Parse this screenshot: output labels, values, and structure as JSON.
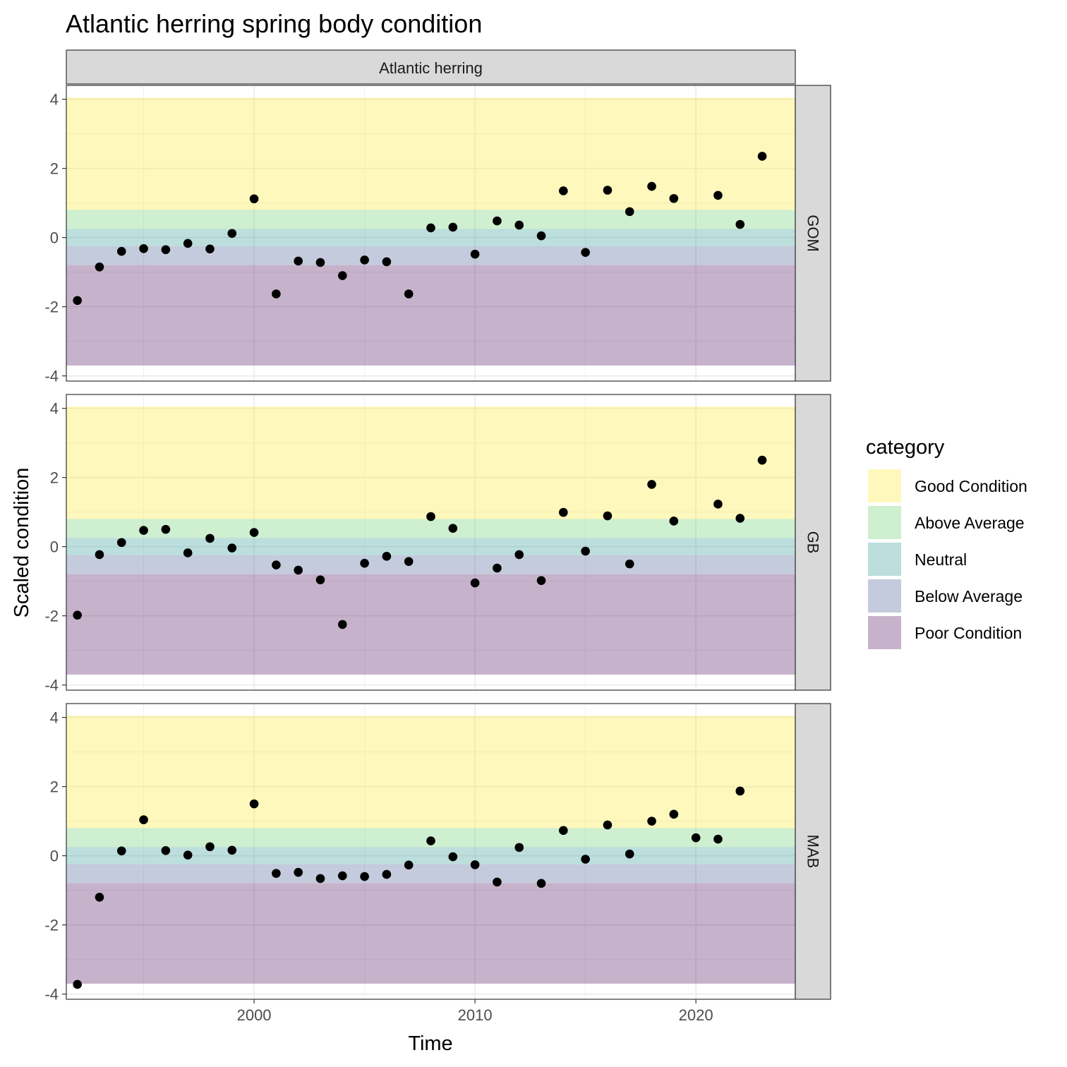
{
  "chart_data": {
    "type": "scatter",
    "title": "Atlantic herring spring body condition",
    "xlabel": "Time",
    "ylabel": "Scaled condition",
    "column_strip": "Atlantic herring",
    "xlim": [
      1991.5,
      2024.5
    ],
    "ylim": [
      -4.15,
      4.4
    ],
    "x_ticks": [
      2000,
      2010,
      2020
    ],
    "y_ticks": [
      -4,
      -2,
      0,
      2,
      4
    ],
    "grid": true,
    "legend": {
      "title": "category",
      "position": "right",
      "entries": [
        {
          "label": "Good Condition",
          "color": "#fde725"
        },
        {
          "label": "Above Average",
          "color": "#5ec962"
        },
        {
          "label": "Neutral",
          "color": "#21918c"
        },
        {
          "label": "Below Average",
          "color": "#3b528b"
        },
        {
          "label": "Poor Condition",
          "color": "#440154"
        }
      ]
    },
    "category_bands": [
      {
        "label": "Good Condition",
        "ymin": 0.8,
        "ymax": 4.05
      },
      {
        "label": "Above Average",
        "ymin": 0.25,
        "ymax": 0.8
      },
      {
        "label": "Neutral",
        "ymin": -0.25,
        "ymax": 0.25
      },
      {
        "label": "Below Average",
        "ymin": -0.8,
        "ymax": -0.25
      },
      {
        "label": "Poor Condition",
        "ymin": -3.7,
        "ymax": -0.8
      }
    ],
    "panels": [
      {
        "name": "GOM",
        "points": [
          [
            1992,
            -1.82
          ],
          [
            1993,
            -0.85
          ],
          [
            1994,
            -0.4
          ],
          [
            1995,
            -0.32
          ],
          [
            1996,
            -0.35
          ],
          [
            1997,
            -0.17
          ],
          [
            1998,
            -0.33
          ],
          [
            1999,
            0.12
          ],
          [
            2000,
            1.12
          ],
          [
            2001,
            -1.63
          ],
          [
            2002,
            -0.68
          ],
          [
            2003,
            -0.72
          ],
          [
            2004,
            -1.1
          ],
          [
            2005,
            -0.65
          ],
          [
            2006,
            -0.7
          ],
          [
            2007,
            -1.63
          ],
          [
            2008,
            0.28
          ],
          [
            2009,
            0.3
          ],
          [
            2010,
            -0.48
          ],
          [
            2011,
            0.48
          ],
          [
            2012,
            0.36
          ],
          [
            2013,
            0.05
          ],
          [
            2014,
            1.35
          ],
          [
            2015,
            -0.43
          ],
          [
            2016,
            1.37
          ],
          [
            2017,
            0.75
          ],
          [
            2018,
            1.48
          ],
          [
            2019,
            1.13
          ],
          [
            2021,
            1.22
          ],
          [
            2022,
            0.38
          ],
          [
            2023,
            2.35
          ]
        ]
      },
      {
        "name": "GB",
        "points": [
          [
            1992,
            -1.98
          ],
          [
            1993,
            -0.23
          ],
          [
            1994,
            0.12
          ],
          [
            1995,
            0.47
          ],
          [
            1996,
            0.5
          ],
          [
            1997,
            -0.18
          ],
          [
            1998,
            0.24
          ],
          [
            1999,
            -0.04
          ],
          [
            2000,
            0.41
          ],
          [
            2001,
            -0.53
          ],
          [
            2002,
            -0.68
          ],
          [
            2003,
            -0.96
          ],
          [
            2004,
            -2.25
          ],
          [
            2005,
            -0.48
          ],
          [
            2006,
            -0.28
          ],
          [
            2007,
            -0.43
          ],
          [
            2008,
            0.87
          ],
          [
            2009,
            0.53
          ],
          [
            2010,
            -1.05
          ],
          [
            2011,
            -0.62
          ],
          [
            2012,
            -0.23
          ],
          [
            2013,
            -0.98
          ],
          [
            2014,
            0.99
          ],
          [
            2015,
            -0.13
          ],
          [
            2016,
            0.89
          ],
          [
            2017,
            -0.5
          ],
          [
            2018,
            1.8
          ],
          [
            2019,
            0.74
          ],
          [
            2021,
            1.23
          ],
          [
            2022,
            0.82
          ],
          [
            2023,
            2.5
          ]
        ]
      },
      {
        "name": "MAB",
        "points": [
          [
            1992,
            -3.72
          ],
          [
            1993,
            -1.2
          ],
          [
            1994,
            0.14
          ],
          [
            1995,
            1.04
          ],
          [
            1996,
            0.15
          ],
          [
            1997,
            0.02
          ],
          [
            1998,
            0.26
          ],
          [
            1999,
            0.16
          ],
          [
            2000,
            1.5
          ],
          [
            2001,
            -0.51
          ],
          [
            2002,
            -0.48
          ],
          [
            2003,
            -0.66
          ],
          [
            2004,
            -0.58
          ],
          [
            2005,
            -0.6
          ],
          [
            2006,
            -0.54
          ],
          [
            2007,
            -0.27
          ],
          [
            2008,
            0.43
          ],
          [
            2009,
            -0.03
          ],
          [
            2010,
            -0.26
          ],
          [
            2011,
            -0.76
          ],
          [
            2012,
            0.24
          ],
          [
            2013,
            -0.8
          ],
          [
            2014,
            0.73
          ],
          [
            2015,
            -0.1
          ],
          [
            2016,
            0.89
          ],
          [
            2017,
            0.05
          ],
          [
            2018,
            1.0
          ],
          [
            2019,
            1.2
          ],
          [
            2020,
            0.52
          ],
          [
            2021,
            0.48
          ],
          [
            2022,
            1.87
          ]
        ]
      }
    ]
  }
}
